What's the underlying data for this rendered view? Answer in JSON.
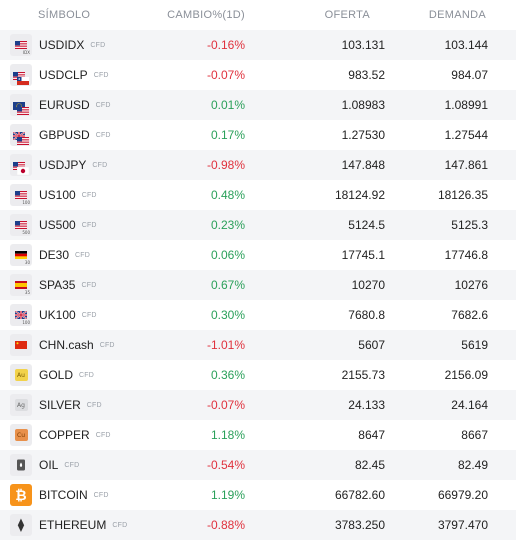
{
  "headers": {
    "symbol": "SÍMBOLO",
    "change": "CAMBIO%(1D)",
    "bid": "OFERTA",
    "ask": "DEMANDA"
  },
  "tag": "CFD",
  "colors": {
    "negative": "#e0313d",
    "positive": "#2aa05a",
    "stripe": "#f4f5f7"
  },
  "rows": [
    {
      "symbol": "USDIDX",
      "cfd": "CFD",
      "change": "-0.16%",
      "bid": "103.131",
      "ask": "103.144",
      "icon": "us-dollar-index-flag-icon"
    },
    {
      "symbol": "USDCLP",
      "cfd": "CFD",
      "change": "-0.07%",
      "bid": "983.52",
      "ask": "984.07",
      "icon": "usd-clp-flags-icon"
    },
    {
      "symbol": "EURUSD",
      "cfd": "CFD",
      "change": "0.01%",
      "bid": "1.08983",
      "ask": "1.08991",
      "icon": "eur-usd-flags-icon"
    },
    {
      "symbol": "GBPUSD",
      "cfd": "CFD",
      "change": "0.17%",
      "bid": "1.27530",
      "ask": "1.27544",
      "icon": "gbp-usd-flags-icon"
    },
    {
      "symbol": "USDJPY",
      "cfd": "CFD",
      "change": "-0.98%",
      "bid": "147.848",
      "ask": "147.861",
      "icon": "usd-jpy-flags-icon"
    },
    {
      "symbol": "US100",
      "cfd": "CFD",
      "change": "0.48%",
      "bid": "18124.92",
      "ask": "18126.35",
      "icon": "us-flag-100-icon"
    },
    {
      "symbol": "US500",
      "cfd": "CFD",
      "change": "0.23%",
      "bid": "5124.5",
      "ask": "5125.3",
      "icon": "us-flag-500-icon"
    },
    {
      "symbol": "DE30",
      "cfd": "CFD",
      "change": "0.06%",
      "bid": "17745.1",
      "ask": "17746.8",
      "icon": "germany-flag-30-icon"
    },
    {
      "symbol": "SPA35",
      "cfd": "CFD",
      "change": "0.67%",
      "bid": "10270",
      "ask": "10276",
      "icon": "spain-flag-35-icon"
    },
    {
      "symbol": "UK100",
      "cfd": "CFD",
      "change": "0.30%",
      "bid": "7680.8",
      "ask": "7682.6",
      "icon": "uk-flag-100-icon"
    },
    {
      "symbol": "CHN.cash",
      "cfd": "CFD",
      "change": "-1.01%",
      "bid": "5607",
      "ask": "5619",
      "icon": "china-flag-icon"
    },
    {
      "symbol": "GOLD",
      "cfd": "CFD",
      "change": "0.36%",
      "bid": "2155.73",
      "ask": "2156.09",
      "icon": "gold-au-icon",
      "metal": "Au"
    },
    {
      "symbol": "SILVER",
      "cfd": "CFD",
      "change": "-0.07%",
      "bid": "24.133",
      "ask": "24.164",
      "icon": "silver-ag-icon",
      "metal": "Ag"
    },
    {
      "symbol": "COPPER",
      "cfd": "CFD",
      "change": "1.18%",
      "bid": "8647",
      "ask": "8667",
      "icon": "copper-cu-icon",
      "metal": "Cu"
    },
    {
      "symbol": "OIL",
      "cfd": "CFD",
      "change": "-0.54%",
      "bid": "82.45",
      "ask": "82.49",
      "icon": "oil-barrel-icon"
    },
    {
      "symbol": "BITCOIN",
      "cfd": "CFD",
      "change": "1.19%",
      "bid": "66782.60",
      "ask": "66979.20",
      "icon": "bitcoin-icon",
      "glyph": "₿"
    },
    {
      "symbol": "ETHEREUM",
      "cfd": "CFD",
      "change": "-0.88%",
      "bid": "3783.250",
      "ask": "3797.470",
      "icon": "ethereum-icon",
      "glyph": "⧫"
    }
  ]
}
